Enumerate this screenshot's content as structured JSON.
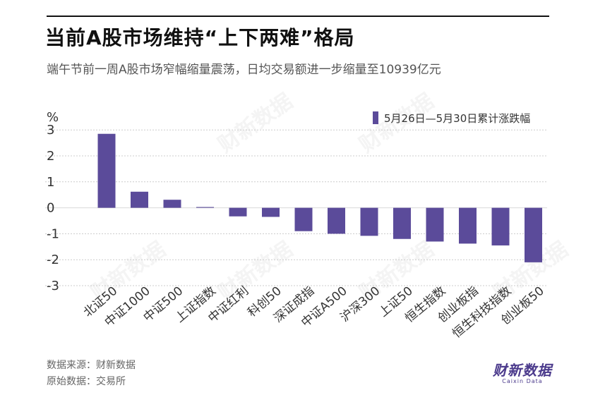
{
  "header": {
    "title": "当前A股市场维持“上下两难”格局",
    "subtitle": "端午节前一周A股市场窄幅缩量震荡，日均交易额进一步缩量至10939亿元"
  },
  "footer": {
    "source": "数据来源：财新数据",
    "origin": "原始数据：交易所",
    "logo_text": "财新数据",
    "logo_sub": "Caixin Data"
  },
  "watermark_text": "财新数据",
  "colors": {
    "bar": "#5b4b9a",
    "grid": "#cccccc",
    "zero_line": "#d8d8d8",
    "text": "#333333"
  },
  "chart_data": {
    "type": "bar",
    "ylabel": "%",
    "ylim": [
      -3,
      3.6
    ],
    "yticks": [
      3,
      2,
      1,
      0,
      -1,
      -2,
      -3
    ],
    "grid": true,
    "legend_position": "top-right",
    "categories": [
      "北证50",
      "中证1000",
      "中证500",
      "上证指数",
      "中证红利",
      "科创50",
      "深证成指",
      "中证A500",
      "沪深300",
      "上证50",
      "恒生指数",
      "创业板指",
      "恒生科技指数",
      "创业板50"
    ],
    "series": [
      {
        "name": "5月26日—5月30日累计涨跌幅",
        "values": [
          2.85,
          0.62,
          0.31,
          0.03,
          -0.33,
          -0.35,
          -0.9,
          -1.0,
          -1.08,
          -1.2,
          -1.3,
          -1.38,
          -1.45,
          -2.1
        ]
      }
    ]
  }
}
